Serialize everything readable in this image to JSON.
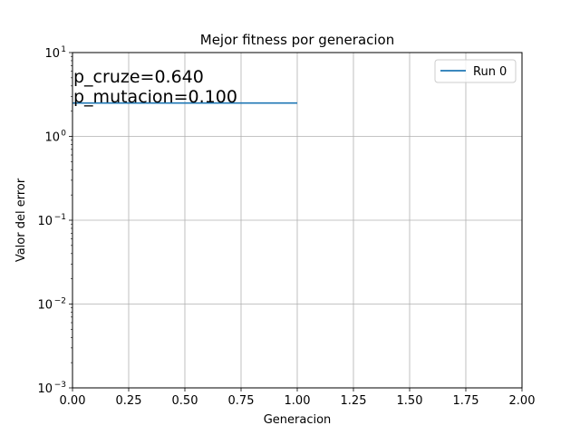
{
  "chart_data": {
    "type": "line",
    "title": "Mejor fitness por generacion",
    "xlabel": "Generacion",
    "ylabel": "Valor del error",
    "xlim": [
      0,
      2
    ],
    "ylim": [
      0.001,
      10
    ],
    "yscale": "log",
    "grid": true,
    "legend_placement": "top-right",
    "x_ticks": [
      "0.00",
      "0.25",
      "0.50",
      "0.75",
      "1.00",
      "1.25",
      "1.50",
      "1.75",
      "2.00"
    ],
    "y_ticks": [
      {
        "value": 0.001,
        "base": "10",
        "exp": "−3"
      },
      {
        "value": 0.01,
        "base": "10",
        "exp": "−2"
      },
      {
        "value": 0.1,
        "base": "10",
        "exp": "−1"
      },
      {
        "value": 1,
        "base": "10",
        "exp": "0"
      },
      {
        "value": 10,
        "base": "10",
        "exp": "1"
      }
    ],
    "series": [
      {
        "name": "Run 0",
        "color": "#1f77b4",
        "x": [
          0,
          1
        ],
        "y": [
          2.5,
          2.5
        ]
      }
    ],
    "annotations": [
      "p_cruze=0.640",
      "p_mutacion=0.100"
    ]
  }
}
